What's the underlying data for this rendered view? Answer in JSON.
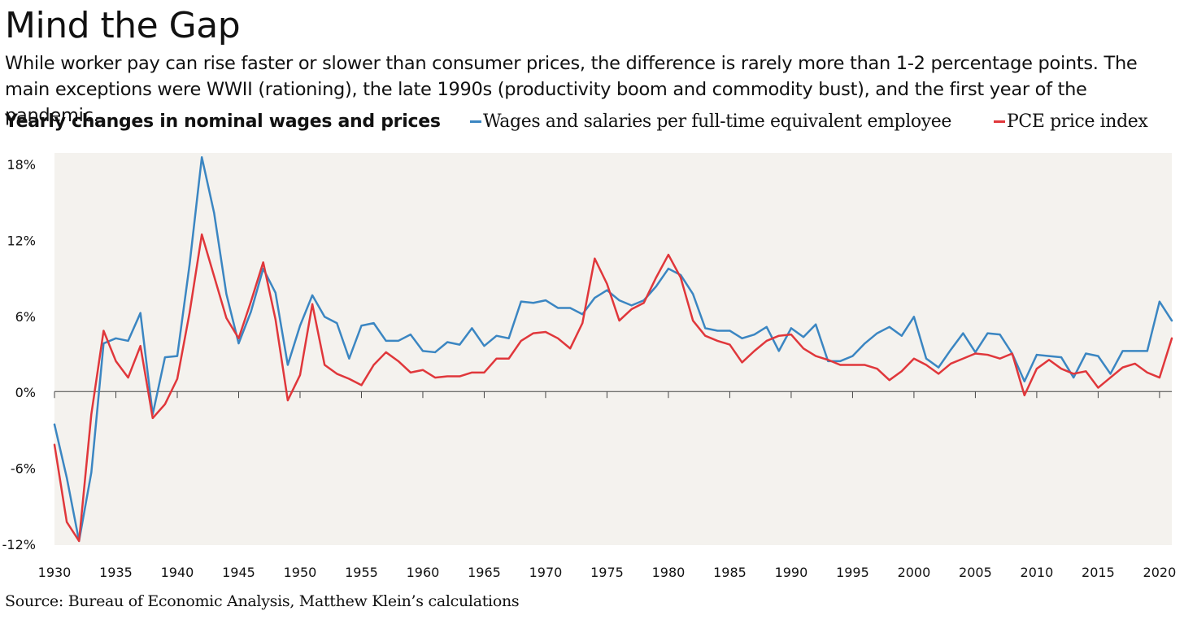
{
  "title": "Mind the Gap",
  "subtitle": "While worker pay can rise faster or slower than consumer prices, the difference is rarely more than 1-2 percentage points. The main exceptions were WWII (rationing), the late 1990s (productivity boom and commodity bust), and the first year of the pandemic.",
  "source": "Source: Bureau of Economic Analysis, Matthew Klein’s calculations",
  "colors": {
    "wages": "#3b86c2",
    "pce": "#e0373b",
    "plot_bg": "#f4f2ee",
    "axis": "#444444"
  },
  "chart_data": {
    "type": "line",
    "title": "Yearly changes in nominal wages and prices",
    "xlabel": "",
    "ylabel": "",
    "xlim": [
      1930,
      2021
    ],
    "ylim": [
      -12,
      19
    ],
    "grid": false,
    "legend_position": "top",
    "x_ticks": [
      1930,
      1935,
      1940,
      1945,
      1950,
      1955,
      1960,
      1965,
      1970,
      1975,
      1980,
      1985,
      1990,
      1995,
      2000,
      2005,
      2010,
      2015,
      2020
    ],
    "x_tick_labels": [
      "1930",
      "1935",
      "1940",
      "1945",
      "1950",
      "1955",
      "1960",
      "1965",
      "1970",
      "1975",
      "1980",
      "1985",
      "1990",
      "1995",
      "2000",
      "2005",
      "2010",
      "2015",
      "2020"
    ],
    "y_ticks": [
      -12,
      -6,
      0,
      6,
      12,
      18
    ],
    "y_tick_labels": [
      "-12%",
      "-6%",
      "0%",
      "6%",
      "12%",
      "18%"
    ],
    "x": [
      1930,
      1931,
      1932,
      1933,
      1934,
      1935,
      1936,
      1937,
      1938,
      1939,
      1940,
      1941,
      1942,
      1943,
      1944,
      1945,
      1946,
      1947,
      1948,
      1949,
      1950,
      1951,
      1952,
      1953,
      1954,
      1955,
      1956,
      1957,
      1958,
      1959,
      1960,
      1961,
      1962,
      1963,
      1964,
      1965,
      1966,
      1967,
      1968,
      1969,
      1970,
      1971,
      1972,
      1973,
      1974,
      1975,
      1976,
      1977,
      1978,
      1979,
      1980,
      1981,
      1982,
      1983,
      1984,
      1985,
      1986,
      1987,
      1988,
      1989,
      1990,
      1991,
      1992,
      1993,
      1994,
      1995,
      1996,
      1997,
      1998,
      1999,
      2000,
      2001,
      2002,
      2003,
      2004,
      2005,
      2006,
      2007,
      2008,
      2009,
      2010,
      2011,
      2012,
      2013,
      2014,
      2015,
      2016,
      2017,
      2018,
      2019,
      2020,
      2021
    ],
    "series": [
      {
        "name": "Wages and salaries per full-time equivalent employee",
        "color": "#3b86c2",
        "values": [
          -2.6,
          -6.8,
          -11.8,
          -6.4,
          3.8,
          4.2,
          4.0,
          6.2,
          -1.8,
          2.7,
          2.8,
          10.0,
          18.5,
          14.1,
          7.7,
          3.8,
          6.3,
          9.7,
          7.8,
          2.1,
          5.2,
          7.6,
          5.9,
          5.4,
          2.6,
          5.2,
          5.4,
          4.0,
          4.0,
          4.5,
          3.2,
          3.1,
          3.9,
          3.7,
          5.0,
          3.6,
          4.4,
          4.2,
          7.1,
          7.0,
          7.2,
          6.6,
          6.6,
          6.1,
          7.4,
          8.0,
          7.2,
          6.8,
          7.2,
          8.3,
          9.7,
          9.2,
          7.7,
          5.0,
          4.8,
          4.8,
          4.2,
          4.5,
          5.1,
          3.2,
          5.0,
          4.3,
          5.3,
          2.4,
          2.4,
          2.8,
          3.8,
          4.6,
          5.1,
          4.4,
          5.9,
          2.6,
          1.9,
          3.3,
          4.6,
          3.1,
          4.6,
          4.5,
          3.0,
          0.8,
          2.9,
          2.8,
          2.7,
          1.1,
          3.0,
          2.8,
          1.4,
          3.2,
          3.2,
          3.2,
          7.1,
          5.6
        ]
      },
      {
        "name": "PCE price index",
        "color": "#e0373b",
        "values": [
          -4.2,
          -10.3,
          -11.8,
          -1.8,
          4.8,
          2.4,
          1.1,
          3.6,
          -2.1,
          -1.0,
          1.0,
          6.2,
          12.4,
          9.1,
          5.8,
          4.2,
          7.1,
          10.2,
          5.7,
          -0.7,
          1.3,
          6.9,
          2.1,
          1.4,
          1.0,
          0.5,
          2.1,
          3.1,
          2.4,
          1.5,
          1.7,
          1.1,
          1.2,
          1.2,
          1.5,
          1.5,
          2.6,
          2.6,
          4.0,
          4.6,
          4.7,
          4.2,
          3.4,
          5.4,
          10.5,
          8.5,
          5.6,
          6.5,
          7.0,
          9.0,
          10.8,
          9.0,
          5.6,
          4.4,
          4.0,
          3.7,
          2.3,
          3.2,
          4.0,
          4.4,
          4.5,
          3.4,
          2.8,
          2.5,
          2.1,
          2.1,
          2.1,
          1.8,
          0.9,
          1.6,
          2.6,
          2.1,
          1.4,
          2.2,
          2.6,
          3.0,
          2.9,
          2.6,
          3.0,
          -0.3,
          1.8,
          2.5,
          1.8,
          1.4,
          1.6,
          0.3,
          1.1,
          1.9,
          2.2,
          1.5,
          1.1,
          4.2
        ]
      }
    ]
  }
}
